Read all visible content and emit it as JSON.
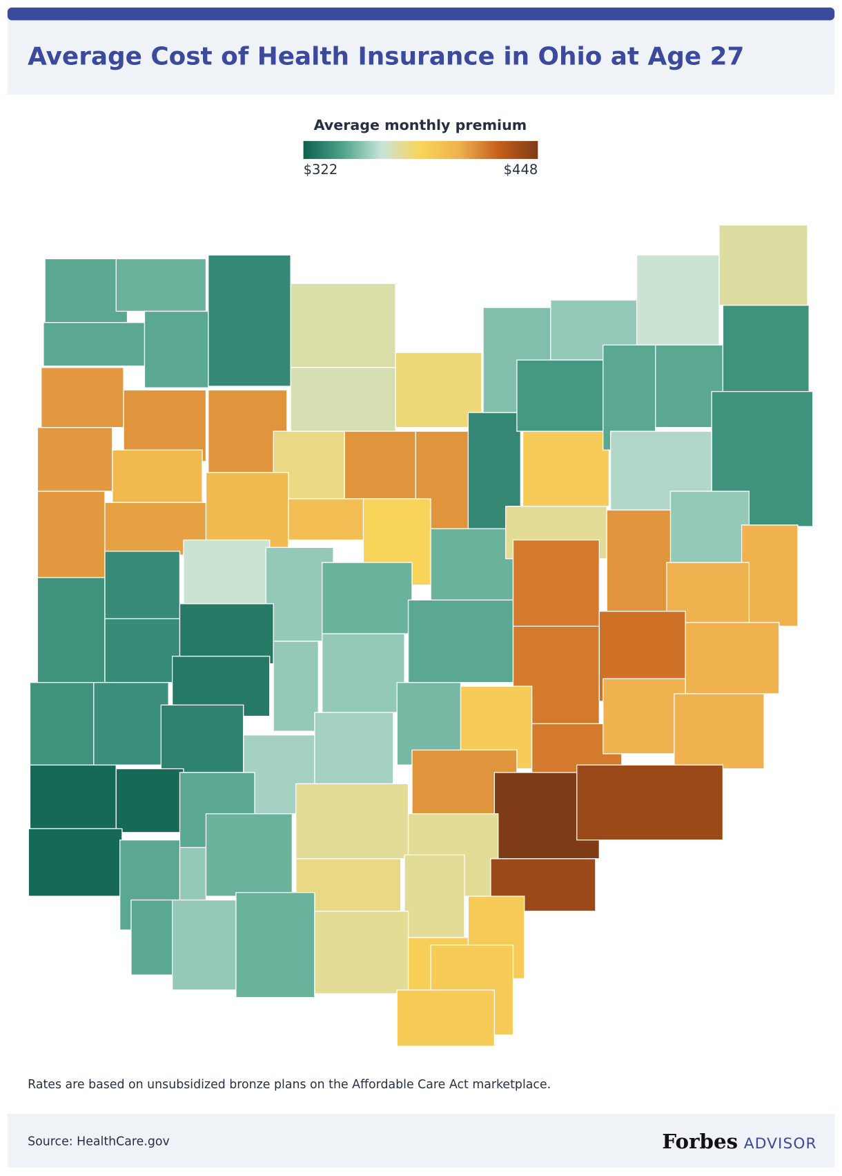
{
  "header": {
    "title": "Average Cost of Health Insurance in Ohio at Age 27"
  },
  "legend": {
    "title": "Average monthly premium",
    "min": {
      "value": 322,
      "label": "$322"
    },
    "max": {
      "value": 448,
      "label": "$448"
    },
    "colors": [
      "#0d5f4e",
      "#4ea28b",
      "#c8e4d8",
      "#f9d45a",
      "#eeb04e",
      "#c55f1c",
      "#7f3b16"
    ]
  },
  "map": {
    "type": "choropleth",
    "values": [
      345,
      348,
      335,
      372,
      345,
      345,
      412,
      413,
      413,
      370,
      380,
      412,
      400,
      378,
      413,
      413,
      335,
      390,
      412,
      410,
      400,
      398,
      385,
      348,
      375,
      352,
      355,
      340,
      345,
      345,
      373,
      365,
      338,
      338,
      360,
      355,
      413,
      338,
      336,
      365,
      355,
      348,
      345,
      420,
      405,
      405,
      336,
      330,
      355,
      355,
      420,
      422,
      405,
      337,
      330,
      338,
      333,
      358,
      358,
      350,
      390,
      420,
      405,
      405,
      325,
      325,
      345,
      413,
      448,
      440,
      325,
      345,
      355,
      348,
      375,
      375,
      440,
      378,
      375,
      390,
      345,
      355,
      348,
      375,
      388,
      390,
      390
    ]
  },
  "note": "Rates are based on unsubsidized bronze plans on the Affordable Care Act marketplace.",
  "footer": {
    "source": "Source: HealthCare.gov",
    "brand": "Forbes",
    "brand_suffix": "ADVISOR"
  }
}
